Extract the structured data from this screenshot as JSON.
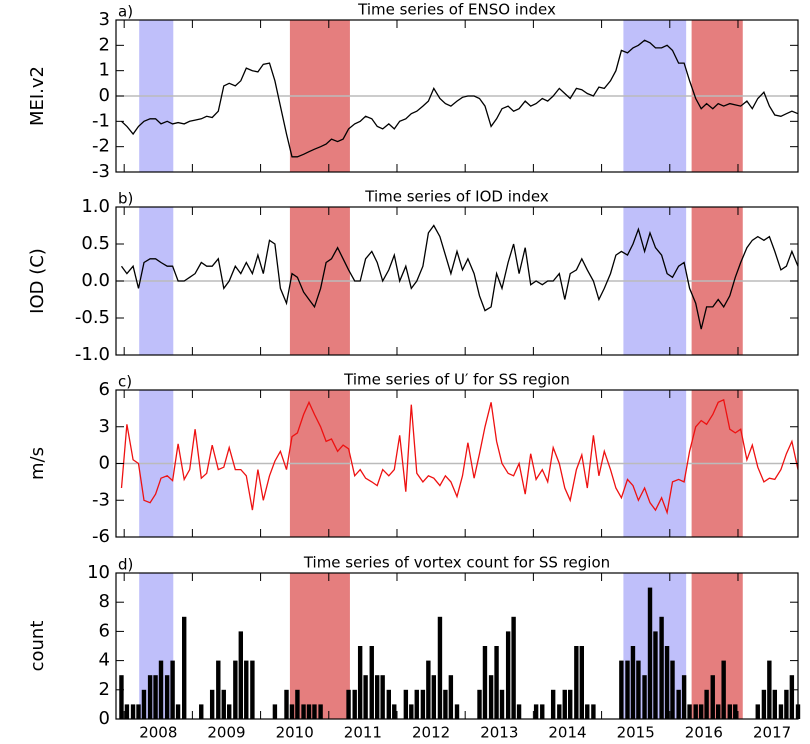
{
  "chart_data": [
    {
      "type": "line",
      "panel": "a)",
      "title": "Time series of ENSO index",
      "ylabel": "MEI.v2",
      "color": "#000000",
      "xlim": [
        2007.88,
        2017.88
      ],
      "ylim": [
        -3,
        3
      ],
      "yticks": [
        -3,
        -2,
        -1,
        0,
        1,
        2,
        3
      ],
      "hline": 0,
      "hline_color": "#bbbbbb",
      "year_ticks": [
        2008,
        2009,
        2010,
        2011,
        2012,
        2013,
        2014,
        2015,
        2016,
        2017
      ],
      "shading": [
        {
          "start": 2008.22,
          "end": 2008.72,
          "color": "#bfbffa"
        },
        {
          "start": 2010.43,
          "end": 2011.31,
          "color": "#e57e7e"
        },
        {
          "start": 2015.32,
          "end": 2016.24,
          "color": "#bfbffa"
        },
        {
          "start": 2016.32,
          "end": 2017.07,
          "color": "#e57e7e"
        }
      ],
      "x": [
        2007.96,
        2008.04,
        2008.13,
        2008.21,
        2008.29,
        2008.38,
        2008.46,
        2008.54,
        2008.63,
        2008.71,
        2008.79,
        2008.88,
        2008.96,
        2009.04,
        2009.13,
        2009.21,
        2009.29,
        2009.38,
        2009.46,
        2009.54,
        2009.63,
        2009.71,
        2009.79,
        2009.88,
        2009.96,
        2010.04,
        2010.13,
        2010.21,
        2010.29,
        2010.38,
        2010.46,
        2010.54,
        2010.63,
        2010.71,
        2010.79,
        2010.88,
        2010.96,
        2011.04,
        2011.13,
        2011.21,
        2011.29,
        2011.38,
        2011.46,
        2011.54,
        2011.63,
        2011.71,
        2011.79,
        2011.88,
        2011.96,
        2012.04,
        2012.13,
        2012.21,
        2012.29,
        2012.38,
        2012.46,
        2012.54,
        2012.63,
        2012.71,
        2012.79,
        2012.88,
        2012.96,
        2013.04,
        2013.13,
        2013.21,
        2013.29,
        2013.38,
        2013.46,
        2013.54,
        2013.63,
        2013.71,
        2013.79,
        2013.88,
        2013.96,
        2014.04,
        2014.13,
        2014.21,
        2014.29,
        2014.38,
        2014.46,
        2014.54,
        2014.63,
        2014.71,
        2014.79,
        2014.88,
        2014.96,
        2015.04,
        2015.13,
        2015.21,
        2015.29,
        2015.38,
        2015.46,
        2015.54,
        2015.63,
        2015.71,
        2015.79,
        2015.88,
        2015.96,
        2016.04,
        2016.13,
        2016.21,
        2016.29,
        2016.38,
        2016.46,
        2016.54,
        2016.63,
        2016.71,
        2016.79,
        2016.88,
        2016.96,
        2017.04,
        2017.13,
        2017.21,
        2017.29,
        2017.38,
        2017.46,
        2017.54,
        2017.63,
        2017.71,
        2017.79,
        2017.88
      ],
      "values": [
        -1.0,
        -1.2,
        -1.5,
        -1.2,
        -1.0,
        -0.9,
        -0.9,
        -1.1,
        -1.0,
        -1.1,
        -1.05,
        -1.1,
        -1.0,
        -0.95,
        -0.9,
        -0.8,
        -0.85,
        -0.6,
        0.4,
        0.5,
        0.4,
        0.6,
        1.1,
        1.0,
        0.95,
        1.25,
        1.3,
        0.6,
        -0.4,
        -1.5,
        -2.4,
        -2.4,
        -2.3,
        -2.2,
        -2.1,
        -2.0,
        -1.9,
        -1.7,
        -1.8,
        -1.7,
        -1.3,
        -1.1,
        -1.0,
        -0.8,
        -0.9,
        -1.2,
        -1.3,
        -1.1,
        -1.3,
        -1.0,
        -0.9,
        -0.7,
        -0.6,
        -0.4,
        -0.2,
        0.3,
        -0.1,
        -0.3,
        -0.4,
        -0.2,
        -0.05,
        0.0,
        0.0,
        -0.1,
        -0.4,
        -1.2,
        -0.9,
        -0.5,
        -0.4,
        -0.6,
        -0.5,
        -0.2,
        -0.4,
        -0.3,
        -0.1,
        -0.2,
        0.0,
        0.3,
        0.1,
        -0.1,
        0.3,
        0.25,
        0.1,
        0.0,
        0.35,
        0.3,
        0.6,
        1.0,
        1.8,
        1.7,
        1.9,
        2.0,
        2.2,
        2.1,
        1.9,
        1.9,
        2.0,
        1.8,
        1.3,
        1.3,
        0.6,
        -0.1,
        -0.5,
        -0.3,
        -0.5,
        -0.3,
        -0.4,
        -0.3,
        -0.35,
        -0.4,
        -0.2,
        -0.5,
        -0.1,
        0.15,
        -0.4,
        -0.75,
        -0.8,
        -0.7,
        -0.6,
        -0.7
      ]
    },
    {
      "type": "line",
      "panel": "b)",
      "title": "Time series of IOD index",
      "ylabel": "IOD (C)",
      "color": "#000000",
      "xlim": [
        2007.88,
        2017.88
      ],
      "ylim": [
        -1,
        1
      ],
      "yticks": [
        {
          "value": -1,
          "label": "-1.0"
        },
        {
          "value": -0.5,
          "label": "-0.5"
        },
        {
          "value": 0,
          "label": "0.0"
        },
        {
          "value": 0.5,
          "label": "0.5"
        },
        {
          "value": 1,
          "label": "1.0"
        }
      ],
      "hline": 0,
      "hline_color": "#bbbbbb",
      "year_ticks": [
        2008,
        2009,
        2010,
        2011,
        2012,
        2013,
        2014,
        2015,
        2016,
        2017
      ],
      "shading": [
        {
          "start": 2008.22,
          "end": 2008.72,
          "color": "#bfbffa"
        },
        {
          "start": 2010.43,
          "end": 2011.31,
          "color": "#e57e7e"
        },
        {
          "start": 2015.32,
          "end": 2016.24,
          "color": "#bfbffa"
        },
        {
          "start": 2016.32,
          "end": 2017.07,
          "color": "#e57e7e"
        }
      ],
      "x": [
        2007.96,
        2008.04,
        2008.13,
        2008.21,
        2008.29,
        2008.38,
        2008.46,
        2008.54,
        2008.63,
        2008.71,
        2008.79,
        2008.88,
        2008.96,
        2009.04,
        2009.13,
        2009.21,
        2009.29,
        2009.38,
        2009.46,
        2009.54,
        2009.63,
        2009.71,
        2009.79,
        2009.88,
        2009.96,
        2010.04,
        2010.13,
        2010.21,
        2010.29,
        2010.38,
        2010.46,
        2010.54,
        2010.63,
        2010.71,
        2010.79,
        2010.88,
        2010.96,
        2011.04,
        2011.13,
        2011.21,
        2011.29,
        2011.38,
        2011.46,
        2011.54,
        2011.63,
        2011.71,
        2011.79,
        2011.88,
        2011.96,
        2012.04,
        2012.13,
        2012.21,
        2012.29,
        2012.38,
        2012.46,
        2012.54,
        2012.63,
        2012.71,
        2012.79,
        2012.88,
        2012.96,
        2013.04,
        2013.13,
        2013.21,
        2013.29,
        2013.38,
        2013.46,
        2013.54,
        2013.63,
        2013.71,
        2013.79,
        2013.88,
        2013.96,
        2014.04,
        2014.13,
        2014.21,
        2014.29,
        2014.38,
        2014.46,
        2014.54,
        2014.63,
        2014.71,
        2014.79,
        2014.88,
        2014.96,
        2015.04,
        2015.13,
        2015.21,
        2015.29,
        2015.38,
        2015.46,
        2015.54,
        2015.63,
        2015.71,
        2015.79,
        2015.88,
        2015.96,
        2016.04,
        2016.13,
        2016.21,
        2016.29,
        2016.38,
        2016.46,
        2016.54,
        2016.63,
        2016.71,
        2016.79,
        2016.88,
        2016.96,
        2017.04,
        2017.13,
        2017.21,
        2017.29,
        2017.38,
        2017.46,
        2017.54,
        2017.63,
        2017.71,
        2017.79,
        2017.88
      ],
      "values": [
        0.2,
        0.1,
        0.2,
        -0.1,
        0.25,
        0.3,
        0.3,
        0.25,
        0.2,
        0.2,
        0.0,
        0.0,
        0.05,
        0.1,
        0.25,
        0.2,
        0.2,
        0.3,
        -0.1,
        0.0,
        0.2,
        0.1,
        0.25,
        0.1,
        0.35,
        0.1,
        0.55,
        0.5,
        -0.1,
        -0.3,
        0.1,
        0.05,
        -0.15,
        -0.25,
        -0.35,
        -0.1,
        0.25,
        0.3,
        0.45,
        0.3,
        0.15,
        0.0,
        0.0,
        0.3,
        0.4,
        0.25,
        0.0,
        0.15,
        0.35,
        0.0,
        0.2,
        -0.1,
        0.0,
        0.2,
        0.65,
        0.75,
        0.6,
        0.35,
        0.1,
        0.4,
        0.15,
        0.3,
        0.1,
        -0.2,
        -0.4,
        -0.35,
        0.1,
        -0.1,
        0.25,
        0.5,
        0.1,
        0.45,
        -0.05,
        0.0,
        -0.05,
        0.0,
        0.0,
        0.1,
        -0.25,
        0.1,
        0.15,
        0.3,
        0.15,
        0.0,
        -0.25,
        -0.1,
        0.1,
        0.35,
        0.4,
        0.35,
        0.5,
        0.7,
        0.4,
        0.65,
        0.45,
        0.35,
        0.1,
        0.05,
        0.2,
        0.25,
        -0.1,
        -0.3,
        -0.65,
        -0.35,
        -0.35,
        -0.25,
        -0.35,
        -0.2,
        0.05,
        0.25,
        0.45,
        0.55,
        0.6,
        0.55,
        0.6,
        0.4,
        0.15,
        0.2,
        0.4,
        0.2
      ]
    },
    {
      "type": "line",
      "panel": "c)",
      "title": "Time series of U′ for SS region",
      "ylabel": "m/s",
      "color": "#ee1111",
      "xlim": [
        2007.88,
        2017.88
      ],
      "ylim": [
        -6,
        6
      ],
      "yticks": [
        -6,
        -3,
        0,
        3,
        6
      ],
      "hline": 0,
      "hline_color": "#bbbbbb",
      "year_ticks": [
        2008,
        2009,
        2010,
        2011,
        2012,
        2013,
        2014,
        2015,
        2016,
        2017
      ],
      "shading": [
        {
          "start": 2008.22,
          "end": 2008.72,
          "color": "#bfbffa"
        },
        {
          "start": 2010.43,
          "end": 2011.31,
          "color": "#e57e7e"
        },
        {
          "start": 2015.32,
          "end": 2016.24,
          "color": "#bfbffa"
        },
        {
          "start": 2016.32,
          "end": 2017.07,
          "color": "#e57e7e"
        }
      ],
      "x": [
        2007.96,
        2008.04,
        2008.13,
        2008.21,
        2008.29,
        2008.38,
        2008.46,
        2008.54,
        2008.63,
        2008.71,
        2008.79,
        2008.88,
        2008.96,
        2009.04,
        2009.13,
        2009.21,
        2009.29,
        2009.38,
        2009.46,
        2009.54,
        2009.63,
        2009.71,
        2009.79,
        2009.88,
        2009.96,
        2010.04,
        2010.13,
        2010.21,
        2010.29,
        2010.38,
        2010.46,
        2010.54,
        2010.63,
        2010.71,
        2010.79,
        2010.88,
        2010.96,
        2011.04,
        2011.13,
        2011.21,
        2011.29,
        2011.38,
        2011.46,
        2011.54,
        2011.63,
        2011.71,
        2011.79,
        2011.88,
        2011.96,
        2012.04,
        2012.13,
        2012.21,
        2012.29,
        2012.38,
        2012.46,
        2012.54,
        2012.63,
        2012.71,
        2012.79,
        2012.88,
        2012.96,
        2013.04,
        2013.13,
        2013.21,
        2013.29,
        2013.38,
        2013.46,
        2013.54,
        2013.63,
        2013.71,
        2013.79,
        2013.88,
        2013.96,
        2014.04,
        2014.13,
        2014.21,
        2014.29,
        2014.38,
        2014.46,
        2014.54,
        2014.63,
        2014.71,
        2014.79,
        2014.88,
        2014.96,
        2015.04,
        2015.13,
        2015.21,
        2015.29,
        2015.38,
        2015.46,
        2015.54,
        2015.63,
        2015.71,
        2015.79,
        2015.88,
        2015.96,
        2016.04,
        2016.13,
        2016.21,
        2016.29,
        2016.38,
        2016.46,
        2016.54,
        2016.63,
        2016.71,
        2016.79,
        2016.88,
        2016.96,
        2017.04,
        2017.13,
        2017.21,
        2017.29,
        2017.38,
        2017.46,
        2017.54,
        2017.63,
        2017.71,
        2017.79,
        2017.88
      ],
      "values": [
        -2.0,
        3.2,
        0.3,
        0.0,
        -3.0,
        -3.2,
        -2.5,
        -1.2,
        -1.0,
        -1.4,
        1.6,
        -1.3,
        -0.5,
        2.8,
        -1.2,
        -0.8,
        1.5,
        -0.5,
        -0.3,
        1.3,
        -0.5,
        -0.5,
        -1.0,
        -3.8,
        -0.5,
        -3.0,
        -1.0,
        0.2,
        1.0,
        -0.5,
        2.2,
        2.5,
        4.0,
        5.0,
        4.0,
        3.0,
        1.8,
        2.0,
        1.0,
        1.5,
        1.2,
        -1.0,
        -0.5,
        -1.2,
        -1.5,
        -1.8,
        -0.5,
        -1.0,
        -0.5,
        2.3,
        -2.3,
        4.8,
        -0.8,
        -1.5,
        -1.0,
        -1.2,
        -1.8,
        -1.0,
        -1.5,
        -2.7,
        -1.0,
        1.7,
        -1.2,
        0.8,
        3.0,
        5.0,
        1.8,
        0.0,
        -0.8,
        -1.0,
        0.0,
        -2.5,
        0.8,
        -1.3,
        -0.5,
        -1.5,
        1.3,
        0.0,
        -2.0,
        -3.0,
        -0.5,
        0.7,
        -2.0,
        2.3,
        -1.0,
        1.0,
        -0.5,
        -2.0,
        -2.8,
        -1.3,
        -1.8,
        -3.0,
        -2.0,
        -3.2,
        -3.8,
        -2.8,
        -4.0,
        -1.5,
        -1.3,
        -1.5,
        1.0,
        3.0,
        3.5,
        3.2,
        4.0,
        5.0,
        5.2,
        2.8,
        2.5,
        2.8,
        0.3,
        1.5,
        -0.3,
        -1.5,
        -1.2,
        -1.3,
        -0.5,
        0.8,
        1.8,
        -0.5
      ]
    },
    {
      "type": "bar",
      "panel": "d)",
      "title": "Time series of vortex count for SS region",
      "ylabel": "count",
      "color": "#000000",
      "xlim": [
        2007.88,
        2017.88
      ],
      "ylim": [
        0,
        10
      ],
      "yticks": [
        0,
        2,
        4,
        6,
        8,
        10
      ],
      "year_ticks": [
        2008,
        2009,
        2010,
        2011,
        2012,
        2013,
        2014,
        2015,
        2016,
        2017
      ],
      "xticks": [
        {
          "value": 2008.5,
          "label": "2008"
        },
        {
          "value": 2009.5,
          "label": "2009"
        },
        {
          "value": 2010.5,
          "label": "2010"
        },
        {
          "value": 2011.5,
          "label": "2011"
        },
        {
          "value": 2012.5,
          "label": "2012"
        },
        {
          "value": 2013.5,
          "label": "2013"
        },
        {
          "value": 2014.5,
          "label": "2014"
        },
        {
          "value": 2015.5,
          "label": "2015"
        },
        {
          "value": 2016.5,
          "label": "2016"
        },
        {
          "value": 2017.5,
          "label": "2017"
        }
      ],
      "shading": [
        {
          "start": 2008.22,
          "end": 2008.72,
          "color": "#bfbffa"
        },
        {
          "start": 2010.43,
          "end": 2011.31,
          "color": "#e57e7e"
        },
        {
          "start": 2015.32,
          "end": 2016.24,
          "color": "#bfbffa"
        },
        {
          "start": 2016.32,
          "end": 2017.07,
          "color": "#e57e7e"
        }
      ],
      "x": [
        2007.96,
        2008.04,
        2008.13,
        2008.21,
        2008.29,
        2008.38,
        2008.46,
        2008.54,
        2008.63,
        2008.71,
        2008.79,
        2008.88,
        2008.96,
        2009.04,
        2009.13,
        2009.21,
        2009.29,
        2009.38,
        2009.46,
        2009.54,
        2009.63,
        2009.71,
        2009.79,
        2009.88,
        2009.96,
        2010.04,
        2010.13,
        2010.21,
        2010.29,
        2010.38,
        2010.46,
        2010.54,
        2010.63,
        2010.71,
        2010.79,
        2010.88,
        2010.96,
        2011.04,
        2011.13,
        2011.21,
        2011.29,
        2011.38,
        2011.46,
        2011.54,
        2011.63,
        2011.71,
        2011.79,
        2011.88,
        2011.96,
        2012.04,
        2012.13,
        2012.21,
        2012.29,
        2012.38,
        2012.46,
        2012.54,
        2012.63,
        2012.71,
        2012.79,
        2012.88,
        2012.96,
        2013.04,
        2013.13,
        2013.21,
        2013.29,
        2013.38,
        2013.46,
        2013.54,
        2013.63,
        2013.71,
        2013.79,
        2013.88,
        2013.96,
        2014.04,
        2014.13,
        2014.21,
        2014.29,
        2014.38,
        2014.46,
        2014.54,
        2014.63,
        2014.71,
        2014.79,
        2014.88,
        2014.96,
        2015.04,
        2015.13,
        2015.21,
        2015.29,
        2015.38,
        2015.46,
        2015.54,
        2015.63,
        2015.71,
        2015.79,
        2015.88,
        2015.96,
        2016.04,
        2016.13,
        2016.21,
        2016.29,
        2016.38,
        2016.46,
        2016.54,
        2016.63,
        2016.71,
        2016.79,
        2016.88,
        2016.96,
        2017.04,
        2017.13,
        2017.21,
        2017.29,
        2017.38,
        2017.46,
        2017.54,
        2017.63,
        2017.71,
        2017.79,
        2017.88
      ],
      "values": [
        3,
        1,
        1,
        1,
        2,
        3,
        3,
        4,
        3,
        4,
        1,
        7,
        0,
        0,
        1,
        0,
        2,
        4,
        2,
        1,
        4,
        6,
        4,
        4,
        0,
        0,
        0,
        1,
        0,
        2,
        1,
        2,
        1,
        1,
        1,
        1,
        0,
        0,
        0,
        0,
        2,
        2,
        5,
        3,
        5,
        3,
        3,
        2,
        1,
        0,
        2,
        1,
        2,
        2,
        4,
        3,
        7,
        2,
        3,
        1,
        0,
        0,
        0,
        2,
        5,
        3,
        5,
        2,
        6,
        7,
        1,
        0,
        0,
        1,
        1,
        0,
        2,
        1,
        2,
        2,
        5,
        5,
        1,
        1,
        0,
        0,
        0,
        0,
        4,
        4,
        5,
        4,
        3,
        9,
        6,
        7,
        5,
        4,
        2,
        3,
        1,
        1,
        1,
        2,
        3,
        1,
        4,
        1,
        1,
        0,
        0,
        0,
        1,
        2,
        4,
        2,
        1,
        2,
        3,
        1
      ]
    }
  ]
}
